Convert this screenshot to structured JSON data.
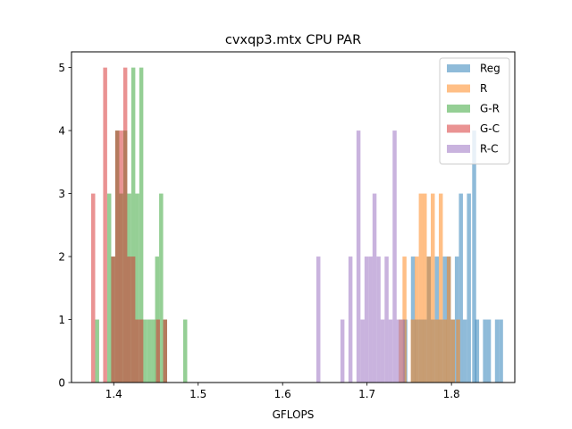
{
  "chart_data": {
    "type": "histogram",
    "title": "cvxqp3.mtx CPU PAR",
    "xlabel": "GFLOPS",
    "ylabel": "",
    "xlim": [
      1.35,
      1.875
    ],
    "ylim": [
      0,
      5.25
    ],
    "bin_width": 0.00475,
    "xticks": [
      1.4,
      1.5,
      1.6,
      1.7,
      1.8
    ],
    "yticks": [
      0,
      1,
      2,
      3,
      4,
      5
    ],
    "grid": false,
    "legend": "top-right",
    "series": [
      {
        "name": "Reg",
        "color": "#1f77b4",
        "alpha": 0.5,
        "bins": [
          [
            1.743,
            1
          ],
          [
            1.752,
            2
          ],
          [
            1.7565,
            1
          ],
          [
            1.7613,
            1
          ],
          [
            1.766,
            1
          ],
          [
            1.7708,
            2
          ],
          [
            1.7755,
            1
          ],
          [
            1.7803,
            2
          ],
          [
            1.785,
            1
          ],
          [
            1.7898,
            2
          ],
          [
            1.7945,
            2
          ],
          [
            1.7993,
            1
          ],
          [
            1.804,
            2
          ],
          [
            1.8088,
            3
          ],
          [
            1.8135,
            1
          ],
          [
            1.8183,
            3
          ],
          [
            1.8245,
            4
          ],
          [
            1.828,
            1
          ],
          [
            1.8373,
            1
          ],
          [
            1.842,
            1
          ],
          [
            1.8515,
            1
          ],
          [
            1.8563,
            1
          ]
        ]
      },
      {
        "name": "R",
        "color": "#ff7f0e",
        "alpha": 0.5,
        "bins": [
          [
            1.7375,
            1
          ],
          [
            1.742,
            2
          ],
          [
            1.7518,
            1
          ],
          [
            1.7565,
            2
          ],
          [
            1.7613,
            3
          ],
          [
            1.766,
            3
          ],
          [
            1.7708,
            2
          ],
          [
            1.7755,
            3
          ],
          [
            1.7803,
            1
          ],
          [
            1.785,
            3
          ],
          [
            1.7898,
            1
          ],
          [
            1.7945,
            2
          ],
          [
            1.7993,
            1
          ],
          [
            1.8055,
            1
          ]
        ]
      },
      {
        "name": "G-R",
        "color": "#2ca02c",
        "alpha": 0.5,
        "bins": [
          [
            1.378,
            1
          ],
          [
            1.3923,
            3
          ],
          [
            1.397,
            2
          ],
          [
            1.4018,
            4
          ],
          [
            1.4065,
            3
          ],
          [
            1.4113,
            4
          ],
          [
            1.416,
            3
          ],
          [
            1.4208,
            5
          ],
          [
            1.4255,
            3
          ],
          [
            1.4303,
            5
          ],
          [
            1.435,
            1
          ],
          [
            1.4398,
            1
          ],
          [
            1.4445,
            1
          ],
          [
            1.449,
            2
          ],
          [
            1.4538,
            3
          ],
          [
            1.4585,
            1
          ],
          [
            1.4823,
            1
          ]
        ]
      },
      {
        "name": "G-C",
        "color": "#d62728",
        "alpha": 0.5,
        "bins": [
          [
            1.3733,
            3
          ],
          [
            1.3875,
            5
          ],
          [
            1.397,
            2
          ],
          [
            1.4018,
            4
          ],
          [
            1.4065,
            4
          ],
          [
            1.4113,
            5
          ],
          [
            1.416,
            2
          ],
          [
            1.4208,
            2
          ],
          [
            1.4255,
            1
          ],
          [
            1.4303,
            1
          ],
          [
            1.45,
            1
          ],
          [
            1.4585,
            1
          ]
        ]
      },
      {
        "name": "R-C",
        "color": "#9467bd",
        "alpha": 0.5,
        "bins": [
          [
            1.64,
            2
          ],
          [
            1.6685,
            1
          ],
          [
            1.678,
            2
          ],
          [
            1.6875,
            4
          ],
          [
            1.6923,
            1
          ],
          [
            1.697,
            2
          ],
          [
            1.7018,
            2
          ],
          [
            1.7065,
            3
          ],
          [
            1.7113,
            2
          ],
          [
            1.716,
            1
          ],
          [
            1.7208,
            2
          ],
          [
            1.7255,
            1
          ],
          [
            1.7303,
            4
          ],
          [
            1.735,
            1
          ],
          [
            1.7398,
            1
          ]
        ]
      }
    ]
  }
}
